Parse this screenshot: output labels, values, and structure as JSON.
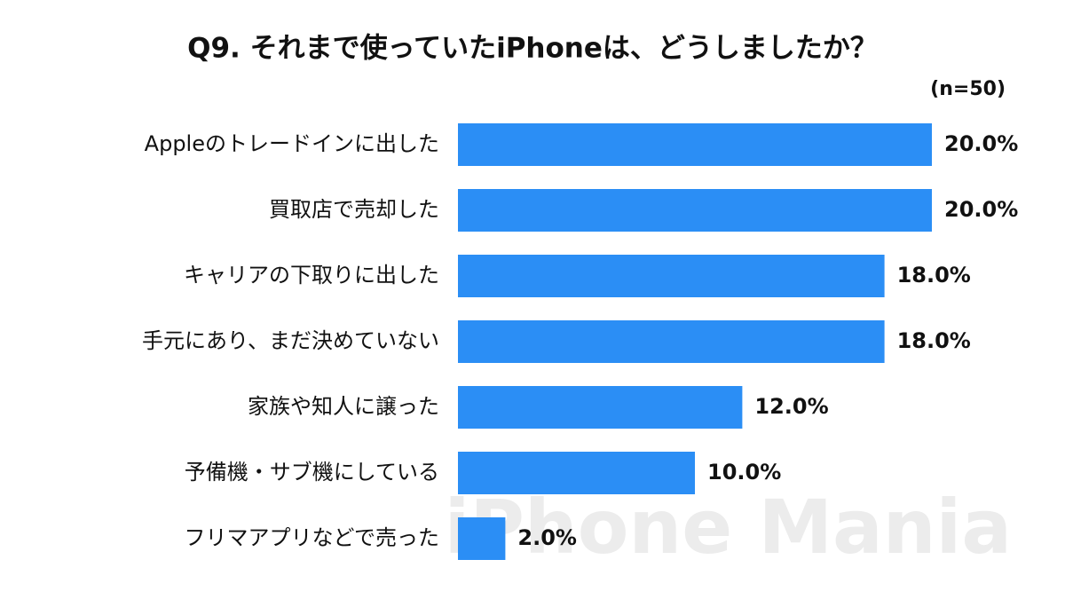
{
  "chart_data": {
    "type": "bar",
    "orientation": "horizontal",
    "title": "Q9. それまで使っていたiPhoneは、どうしましたか？",
    "subtitle": "(n=50)",
    "watermark": "iPhone Mania",
    "categories": [
      "Appleのトレードインに出した",
      "買取店で売却した",
      "キャリアの下取りに出した",
      "手元にあり、まだ決めていない",
      "家族や知人に譲った",
      "予備機・サブ機にしている",
      "フリマアプリなどで売った"
    ],
    "values": [
      20,
      20,
      18,
      18,
      12,
      10,
      2
    ],
    "value_labels": [
      "20.0%",
      "20.0%",
      "18.0%",
      "18.0%",
      "12.0%",
      "10.0%",
      "2.0%"
    ],
    "color": "#2b8ef5"
  }
}
